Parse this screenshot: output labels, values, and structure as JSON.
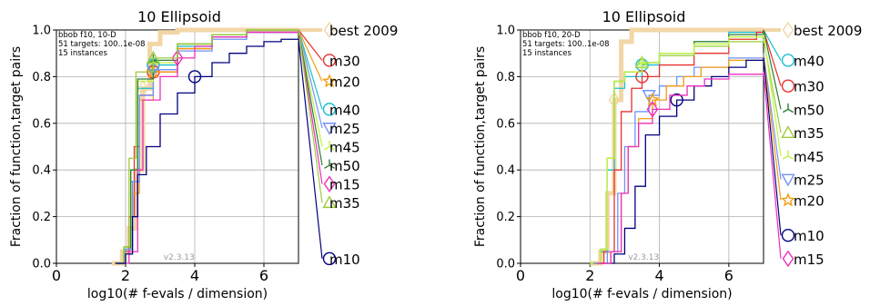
{
  "chart_data": [
    {
      "type": "line",
      "title": "10 Ellipsoid",
      "xlabel": "log10(# f-evals / dimension)",
      "ylabel": "Fraction of function,target pairs",
      "xlim": [
        0,
        7
      ],
      "ylim": [
        0,
        1
      ],
      "xticks": [
        "0",
        "2",
        "4",
        "6"
      ],
      "yticks": [
        "0.0",
        "0.2",
        "0.4",
        "0.6",
        "0.8",
        "1.0"
      ],
      "annotation": [
        "bbob f10, 10-D",
        "51 targets: 100..1e-08",
        "15 instances"
      ],
      "version": "v2.3.13",
      "legend_placement": "right",
      "series": [
        {
          "name": "best 2009",
          "color": "#f2d6a6",
          "marker": "diamond",
          "points": [
            [
              1.6,
              0
            ],
            [
              1.9,
              0.05
            ],
            [
              2.1,
              0.15
            ],
            [
              2.3,
              0.4
            ],
            [
              2.5,
              0.75
            ],
            [
              2.7,
              0.94
            ],
            [
              3.0,
              0.99
            ],
            [
              3.5,
              1.0
            ],
            [
              7.0,
              1.0
            ]
          ],
          "end_y": 1.0
        },
        {
          "name": "m30",
          "color": "#e8302e",
          "marker": "circle",
          "points": [
            [
              1.7,
              0
            ],
            [
              1.95,
              0.05
            ],
            [
              2.1,
              0.2
            ],
            [
              2.25,
              0.5
            ],
            [
              2.4,
              0.72
            ],
            [
              2.8,
              0.82
            ],
            [
              3.5,
              0.92
            ],
            [
              4.5,
              0.97
            ],
            [
              5.5,
              0.99
            ],
            [
              7.0,
              1.0
            ]
          ],
          "end_y": 0.87
        },
        {
          "name": "m20",
          "color": "#f39c12",
          "marker": "star",
          "points": [
            [
              1.75,
              0
            ],
            [
              2.0,
              0.06
            ],
            [
              2.2,
              0.3
            ],
            [
              2.4,
              0.7
            ],
            [
              2.8,
              0.82
            ],
            [
              3.5,
              0.92
            ],
            [
              4.5,
              0.97
            ],
            [
              5.5,
              0.99
            ],
            [
              7.0,
              1.0
            ]
          ],
          "end_y": 0.78
        },
        {
          "name": "m40",
          "color": "#17becf",
          "marker": "circle",
          "points": [
            [
              1.7,
              0
            ],
            [
              1.95,
              0.06
            ],
            [
              2.15,
              0.35
            ],
            [
              2.35,
              0.75
            ],
            [
              2.8,
              0.85
            ],
            [
              3.5,
              0.93
            ],
            [
              4.5,
              0.97
            ],
            [
              5.5,
              0.99
            ],
            [
              7.0,
              1.0
            ]
          ],
          "end_y": 0.66
        },
        {
          "name": "m25",
          "color": "#7193f5",
          "marker": "triangle-down",
          "points": [
            [
              1.75,
              0
            ],
            [
              2.0,
              0.06
            ],
            [
              2.2,
              0.35
            ],
            [
              2.4,
              0.72
            ],
            [
              2.8,
              0.83
            ],
            [
              3.5,
              0.91
            ],
            [
              4.5,
              0.96
            ],
            [
              5.5,
              0.99
            ],
            [
              7.0,
              1.0
            ]
          ],
          "end_y": 0.58
        },
        {
          "name": "m45",
          "color": "#bff542",
          "marker": "tri",
          "points": [
            [
              1.7,
              0
            ],
            [
              1.95,
              0.07
            ],
            [
              2.15,
              0.4
            ],
            [
              2.35,
              0.78
            ],
            [
              2.8,
              0.86
            ],
            [
              3.5,
              0.94
            ],
            [
              4.5,
              0.98
            ],
            [
              5.5,
              1.0
            ],
            [
              7.0,
              1.0
            ]
          ],
          "end_y": 0.5
        },
        {
          "name": "m50",
          "color": "#2e7d32",
          "marker": "tri",
          "points": [
            [
              1.7,
              0
            ],
            [
              1.95,
              0.07
            ],
            [
              2.15,
              0.4
            ],
            [
              2.35,
              0.79
            ],
            [
              2.8,
              0.87
            ],
            [
              3.5,
              0.94
            ],
            [
              4.5,
              0.98
            ],
            [
              5.5,
              1.0
            ],
            [
              7.0,
              1.0
            ]
          ],
          "end_y": 0.42
        },
        {
          "name": "m15",
          "color": "#ee2fbb",
          "marker": "diamond",
          "points": [
            [
              1.8,
              0
            ],
            [
              2.1,
              0.05
            ],
            [
              2.35,
              0.4
            ],
            [
              2.5,
              0.7
            ],
            [
              3.0,
              0.8
            ],
            [
              3.5,
              0.88
            ],
            [
              4.0,
              0.93
            ],
            [
              4.5,
              0.97
            ],
            [
              5.5,
              0.99
            ],
            [
              7.0,
              1.0
            ]
          ],
          "end_y": 0.34
        },
        {
          "name": "m35",
          "color": "#9ccc3a",
          "marker": "triangle-up",
          "points": [
            [
              1.7,
              0
            ],
            [
              1.95,
              0.07
            ],
            [
              2.1,
              0.45
            ],
            [
              2.3,
              0.82
            ],
            [
              2.8,
              0.88
            ],
            [
              3.5,
              0.94
            ],
            [
              4.5,
              0.98
            ],
            [
              5.5,
              1.0
            ],
            [
              7.0,
              1.0
            ]
          ],
          "end_y": 0.26
        },
        {
          "name": "m10",
          "color": "#000080",
          "marker": "circle",
          "points": [
            [
              1.7,
              0
            ],
            [
              2.0,
              0.04
            ],
            [
              2.2,
              0.2
            ],
            [
              2.35,
              0.38
            ],
            [
              2.6,
              0.5
            ],
            [
              3.0,
              0.64
            ],
            [
              3.5,
              0.73
            ],
            [
              4.0,
              0.8
            ],
            [
              4.5,
              0.86
            ],
            [
              5.0,
              0.9
            ],
            [
              5.5,
              0.93
            ],
            [
              6.0,
              0.95
            ],
            [
              6.5,
              0.96
            ],
            [
              7.0,
              0.96
            ]
          ],
          "end_y": 0.02
        }
      ]
    },
    {
      "type": "line",
      "title": "10 Ellipsoid",
      "xlabel": "log10(# f-evals / dimension)",
      "ylabel": "Fraction of function,target pairs",
      "xlim": [
        0,
        7
      ],
      "ylim": [
        0,
        1
      ],
      "xticks": [
        "0",
        "2",
        "4",
        "6"
      ],
      "yticks": [
        "0.0",
        "0.2",
        "0.4",
        "0.6",
        "0.8",
        "1.0"
      ],
      "annotation": [
        "bbob f10, 20-D",
        "51 targets: 100..1e-08",
        "15 instances"
      ],
      "version": "v2.3.13",
      "legend_placement": "right",
      "series": [
        {
          "name": "best 2009",
          "color": "#f2d6a6",
          "marker": "diamond",
          "points": [
            [
              2.0,
              0
            ],
            [
              2.3,
              0.05
            ],
            [
              2.5,
              0.3
            ],
            [
              2.7,
              0.7
            ],
            [
              2.9,
              0.95
            ],
            [
              3.2,
              1.0
            ],
            [
              7.0,
              1.0
            ]
          ],
          "end_y": 1.0
        },
        {
          "name": "m40",
          "color": "#17becf",
          "marker": "circle",
          "points": [
            [
              2.0,
              0
            ],
            [
              2.3,
              0.05
            ],
            [
              2.5,
              0.4
            ],
            [
              2.7,
              0.75
            ],
            [
              3.0,
              0.8
            ],
            [
              3.5,
              0.85
            ],
            [
              4.0,
              0.9
            ],
            [
              5.0,
              0.95
            ],
            [
              6.0,
              0.99
            ],
            [
              7.0,
              1.0
            ]
          ],
          "end_y": 0.87
        },
        {
          "name": "m30",
          "color": "#e8302e",
          "marker": "circle",
          "points": [
            [
              2.1,
              0
            ],
            [
              2.4,
              0.05
            ],
            [
              2.7,
              0.4
            ],
            [
              2.9,
              0.65
            ],
            [
              3.2,
              0.75
            ],
            [
              3.5,
              0.8
            ],
            [
              4.0,
              0.85
            ],
            [
              5.0,
              0.9
            ],
            [
              6.0,
              0.96
            ],
            [
              6.8,
              0.99
            ],
            [
              7.0,
              1.0
            ]
          ],
          "end_y": 0.76
        },
        {
          "name": "m50",
          "color": "#2e7d32",
          "marker": "tri",
          "points": [
            [
              2.0,
              0
            ],
            [
              2.3,
              0.06
            ],
            [
              2.5,
              0.45
            ],
            [
              2.7,
              0.78
            ],
            [
              3.0,
              0.82
            ],
            [
              3.5,
              0.86
            ],
            [
              4.0,
              0.9
            ],
            [
              5.0,
              0.95
            ],
            [
              6.0,
              0.98
            ],
            [
              7.0,
              1.0
            ]
          ],
          "end_y": 0.66
        },
        {
          "name": "m35",
          "color": "#9ccc3a",
          "marker": "triangle-up",
          "points": [
            [
              2.0,
              0
            ],
            [
              2.3,
              0.06
            ],
            [
              2.5,
              0.45
            ],
            [
              2.7,
              0.78
            ],
            [
              3.0,
              0.82
            ],
            [
              3.5,
              0.86
            ],
            [
              4.0,
              0.89
            ],
            [
              5.0,
              0.93
            ],
            [
              6.0,
              0.95
            ],
            [
              7.0,
              0.96
            ]
          ],
          "end_y": 0.56
        },
        {
          "name": "m45",
          "color": "#bff542",
          "marker": "tri",
          "points": [
            [
              2.0,
              0
            ],
            [
              2.3,
              0.06
            ],
            [
              2.5,
              0.45
            ],
            [
              2.7,
              0.78
            ],
            [
              3.0,
              0.82
            ],
            [
              3.5,
              0.86
            ],
            [
              4.0,
              0.9
            ],
            [
              5.0,
              0.94
            ],
            [
              6.0,
              0.97
            ],
            [
              7.0,
              0.98
            ]
          ],
          "end_y": 0.46
        },
        {
          "name": "m25",
          "color": "#7193f5",
          "marker": "triangle-down",
          "points": [
            [
              2.1,
              0
            ],
            [
              2.5,
              0.05
            ],
            [
              2.8,
              0.3
            ],
            [
              3.0,
              0.5
            ],
            [
              3.3,
              0.65
            ],
            [
              3.7,
              0.72
            ],
            [
              4.0,
              0.76
            ],
            [
              4.5,
              0.8
            ],
            [
              5.0,
              0.84
            ],
            [
              6.0,
              0.88
            ],
            [
              7.0,
              0.9
            ]
          ],
          "end_y": 0.36
        },
        {
          "name": "m20",
          "color": "#f39c12",
          "marker": "star",
          "points": [
            [
              2.2,
              0
            ],
            [
              2.6,
              0.05
            ],
            [
              2.9,
              0.3
            ],
            [
              3.1,
              0.5
            ],
            [
              3.4,
              0.62
            ],
            [
              3.8,
              0.7
            ],
            [
              4.2,
              0.76
            ],
            [
              4.7,
              0.8
            ],
            [
              5.2,
              0.84
            ],
            [
              6.0,
              0.87
            ],
            [
              7.0,
              0.89
            ]
          ],
          "end_y": 0.27
        },
        {
          "name": "m10",
          "color": "#000080",
          "marker": "circle",
          "points": [
            [
              2.3,
              0
            ],
            [
              2.7,
              0.04
            ],
            [
              3.0,
              0.15
            ],
            [
              3.3,
              0.33
            ],
            [
              3.6,
              0.55
            ],
            [
              4.0,
              0.63
            ],
            [
              4.5,
              0.7
            ],
            [
              5.0,
              0.76
            ],
            [
              5.5,
              0.8
            ],
            [
              6.0,
              0.84
            ],
            [
              6.5,
              0.87
            ],
            [
              7.0,
              0.88
            ]
          ],
          "end_y": 0.12
        },
        {
          "name": "m15",
          "color": "#ee2fbb",
          "marker": "diamond",
          "points": [
            [
              2.2,
              0
            ],
            [
              2.6,
              0.05
            ],
            [
              2.9,
              0.3
            ],
            [
              3.1,
              0.5
            ],
            [
              3.4,
              0.6
            ],
            [
              3.8,
              0.66
            ],
            [
              4.3,
              0.72
            ],
            [
              4.8,
              0.76
            ],
            [
              5.3,
              0.79
            ],
            [
              6.0,
              0.81
            ],
            [
              7.0,
              0.82
            ]
          ],
          "end_y": 0.02
        }
      ]
    }
  ]
}
